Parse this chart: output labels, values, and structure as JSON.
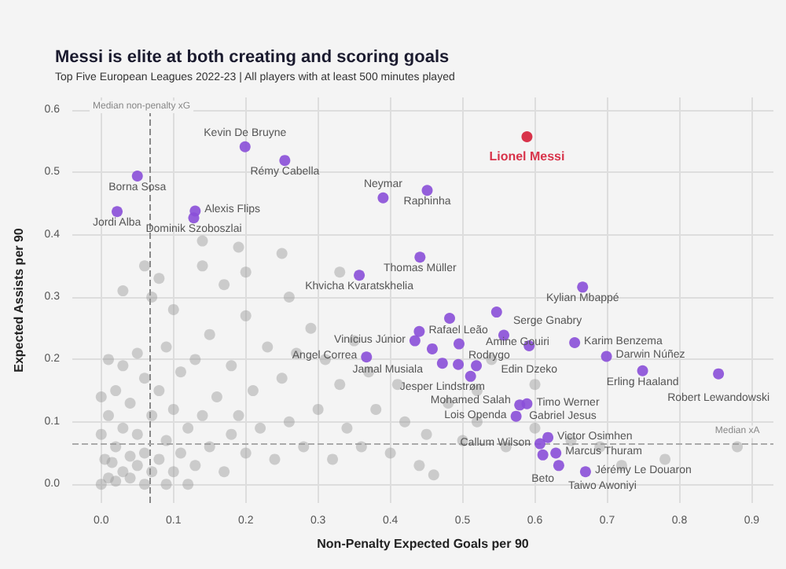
{
  "chart_data": {
    "type": "scatter",
    "title": "Messi is elite at both creating and scoring goals",
    "subtitle": "Top Five European Leagues 2022-23 | All players with at least 500 minutes played",
    "xlabel": "Non-Penalty Expected Goals per 90",
    "ylabel": "Expected Assists per 90",
    "xlim": [
      -0.04,
      0.93
    ],
    "ylim": [
      -0.03,
      0.62
    ],
    "xticks": [
      {
        "value": 0,
        "label": "0.0"
      },
      0.1,
      0.2,
      0.3,
      0.4,
      0.5,
      0.6,
      0.7,
      0.8,
      0.9
    ],
    "yticks": [
      {
        "value": 0,
        "label": "0.0"
      },
      0.1,
      0.2,
      0.3,
      0.4,
      0.5,
      0.6
    ],
    "grid": true,
    "legend": false,
    "marker": "circle",
    "ref_lines": [
      {
        "axis": "x",
        "value": 0.067,
        "label": "Median non-penalty xG",
        "color": "#888888",
        "line_style": "dashed"
      },
      {
        "axis": "y",
        "value": 0.064,
        "label": "Median xA",
        "color": "#aaaaaa",
        "line_style": "dashed"
      }
    ],
    "series": [
      {
        "color": "#9a9a9a",
        "x": [
          0,
          0.01,
          0.02,
          0.03,
          0.005,
          0.04,
          0.05,
          0.02,
          0.06,
          0.07,
          0.08,
          0.03,
          0.01,
          0.05,
          0.09,
          0.1,
          0.11,
          0.12,
          0.04,
          0.07,
          0.02,
          0.06,
          0.1,
          0.13,
          0.15,
          0.14,
          0.08,
          0.03,
          0.11,
          0.17,
          0.18,
          0.16,
          0.2,
          0.19,
          0.05,
          0.09,
          0.13,
          0.22,
          0.21,
          0.24,
          0.26,
          0.15,
          0.18,
          0.25,
          0.28,
          0.3,
          0.23,
          0.27,
          0.32,
          0.34,
          0.33,
          0.36,
          0.38,
          0.31,
          0.4,
          0.42,
          0.37,
          0.44,
          0.46,
          0.45,
          0.48,
          0.5,
          0.52,
          0.56,
          0.6,
          0.65,
          0.69,
          0.72,
          0.78,
          0.88,
          0.41,
          0.35,
          0.29,
          0.2,
          0.1,
          0.07,
          0.17,
          0.03,
          0.14,
          0.06,
          0.08,
          0.2,
          0.26,
          0.19,
          0.14,
          0.25,
          0.33,
          0.52,
          0.54,
          0.6,
          0.01,
          0,
          0,
          0.04,
          0.06,
          0.09,
          0.12,
          0.015
        ],
        "values": [
          0,
          0.01,
          0.005,
          0.02,
          0.04,
          0.01,
          0.03,
          0.06,
          0.05,
          0.02,
          0.04,
          0.09,
          0.11,
          0.08,
          0.07,
          0.02,
          0.05,
          0.09,
          0.13,
          0.11,
          0.15,
          0.17,
          0.12,
          0.03,
          0.06,
          0.11,
          0.15,
          0.19,
          0.18,
          0.02,
          0.08,
          0.14,
          0.05,
          0.11,
          0.21,
          0.22,
          0.2,
          0.09,
          0.15,
          0.04,
          0.1,
          0.24,
          0.19,
          0.17,
          0.06,
          0.12,
          0.22,
          0.21,
          0.04,
          0.09,
          0.16,
          0.06,
          0.12,
          0.2,
          0.05,
          0.1,
          0.18,
          0.03,
          0.015,
          0.08,
          0.13,
          0.07,
          0.1,
          0.06,
          0.09,
          0.07,
          0.06,
          0.03,
          0.04,
          0.06,
          0.16,
          0.23,
          0.25,
          0.27,
          0.28,
          0.3,
          0.32,
          0.31,
          0.35,
          0.35,
          0.33,
          0.34,
          0.3,
          0.38,
          0.39,
          0.37,
          0.34,
          0.15,
          0.2,
          0.16,
          0.2,
          0.08,
          0.14,
          0.045,
          0,
          0,
          0,
          0.035
        ]
      },
      {
        "color": "#8a4fd8",
        "x": [
          0.199,
          0.254,
          0.05,
          0.451,
          0.39,
          0.022,
          0.13,
          0.128,
          0.357,
          0.441,
          0.666,
          0.547,
          0.44,
          0.434,
          0.482,
          0.557,
          0.655,
          0.495,
          0.592,
          0.458,
          0.699,
          0.472,
          0.367,
          0.494,
          0.519,
          0.511,
          0.749,
          0.854,
          0.589,
          0.579,
          0.574,
          0.618,
          0.607,
          0.629,
          0.611,
          0.633,
          0.67
        ],
        "values": [
          0.541,
          0.519,
          0.494,
          0.471,
          0.459,
          0.437,
          0.438,
          0.427,
          0.335,
          0.364,
          0.316,
          0.276,
          0.245,
          0.23,
          0.266,
          0.239,
          0.227,
          0.225,
          0.222,
          0.217,
          0.205,
          0.194,
          0.204,
          0.192,
          0.19,
          0.173,
          0.182,
          0.177,
          0.129,
          0.127,
          0.109,
          0.075,
          0.065,
          0.05,
          0.047,
          0.03,
          0.02
        ]
      },
      {
        "name": "Lionel Messi",
        "color": "#d8334a",
        "x": [
          0.589
        ],
        "values": [
          0.557
        ]
      }
    ],
    "annotations": [
      {
        "text": "Kevin De Bruyne",
        "x": 0.199,
        "y": 0.541
      },
      {
        "text": "Rémy Cabella",
        "x": 0.254,
        "y": 0.519
      },
      {
        "text": "Borna Sosa",
        "x": 0.05,
        "y": 0.494
      },
      {
        "text": "Raphinha",
        "x": 0.451,
        "y": 0.471
      },
      {
        "text": "Neymar",
        "x": 0.39,
        "y": 0.459
      },
      {
        "text": "Jordi Alba",
        "x": 0.022,
        "y": 0.437
      },
      {
        "text": "Alexis Flips",
        "x": 0.13,
        "y": 0.438
      },
      {
        "text": "Dominik Szoboszlai",
        "x": 0.128,
        "y": 0.427
      },
      {
        "text": "Khvicha Kvaratskhelia",
        "x": 0.357,
        "y": 0.335
      },
      {
        "text": "Thomas Müller",
        "x": 0.441,
        "y": 0.364
      },
      {
        "text": "Kylian Mbappé",
        "x": 0.666,
        "y": 0.316
      },
      {
        "text": "Rafael Leão",
        "x": 0.44,
        "y": 0.245
      },
      {
        "text": "Vinícius Júnior",
        "x": 0.434,
        "y": 0.23
      },
      {
        "text": "Serge Gnabry",
        "x": 0.557,
        "y": 0.239
      },
      {
        "text": "Karim Benzema",
        "x": 0.655,
        "y": 0.227
      },
      {
        "text": "Rodrygo",
        "x": 0.495,
        "y": 0.225
      },
      {
        "text": "Edin Dzeko",
        "x": 0.592,
        "y": 0.222
      },
      {
        "text": "Jamal Musiala",
        "x": 0.458,
        "y": 0.217
      },
      {
        "text": "Darwin Núñez",
        "x": 0.699,
        "y": 0.205
      },
      {
        "text": "Jesper Lindstrøm",
        "x": 0.472,
        "y": 0.194
      },
      {
        "text": "Angel Correa",
        "x": 0.367,
        "y": 0.204
      },
      {
        "text": "Amine Gouiri",
        "x": 0.519,
        "y": 0.19
      },
      {
        "text": "Mohamed Salah",
        "x": 0.511,
        "y": 0.173
      },
      {
        "text": "Erling Haaland",
        "x": 0.749,
        "y": 0.182
      },
      {
        "text": "Robert Lewandowski",
        "x": 0.854,
        "y": 0.177
      },
      {
        "text": "Timo Werner",
        "x": 0.589,
        "y": 0.129
      },
      {
        "text": "Gabriel Jesus",
        "x": 0.579,
        "y": 0.127
      },
      {
        "text": "Lois Openda",
        "x": 0.574,
        "y": 0.109
      },
      {
        "text": "Victor Osimhen",
        "x": 0.618,
        "y": 0.075
      },
      {
        "text": "Callum Wilson",
        "x": 0.607,
        "y": 0.065
      },
      {
        "text": "Marcus Thuram",
        "x": 0.629,
        "y": 0.05
      },
      {
        "text": "Beto",
        "x": 0.611,
        "y": 0.047
      },
      {
        "text": "Taiwo Awoniyi",
        "x": 0.633,
        "y": 0.03
      },
      {
        "text": "Jérémy Le Douaron",
        "x": 0.67,
        "y": 0.02
      }
    ]
  }
}
